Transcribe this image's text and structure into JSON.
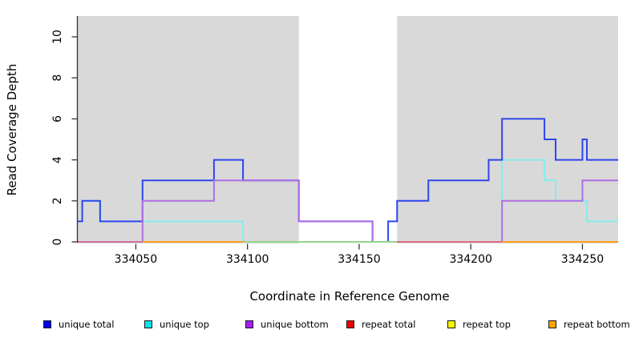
{
  "chart_data": {
    "type": "line",
    "step": true,
    "title": "",
    "xlabel": "Coordinate in Reference Genome",
    "ylabel": "Read Coverage Depth",
    "xlim": [
      334024,
      334266
    ],
    "ylim": [
      0,
      11
    ],
    "xticks": [
      334050,
      334100,
      334150,
      334200,
      334250
    ],
    "yticks": [
      0,
      2,
      4,
      6,
      8,
      10
    ],
    "grid": false,
    "plot_background": "#ffffff",
    "shaded_regions": [
      {
        "x0": 334024,
        "x1": 334123,
        "color": "#d9d9d9"
      },
      {
        "x0": 334167,
        "x1": 334266,
        "color": "#d9d9d9"
      }
    ],
    "series": [
      {
        "name": "unique total",
        "line_color": "#2e46ec",
        "width": 2,
        "z": 5,
        "points": [
          [
            334024,
            1
          ],
          [
            334026,
            2
          ],
          [
            334034,
            1
          ],
          [
            334053,
            3
          ],
          [
            334085,
            4
          ],
          [
            334098,
            3
          ],
          [
            334123,
            1
          ],
          [
            334156,
            0
          ],
          [
            334163,
            1
          ],
          [
            334167,
            2
          ],
          [
            334181,
            3
          ],
          [
            334208,
            4
          ],
          [
            334214,
            6
          ],
          [
            334233,
            5
          ],
          [
            334238,
            4
          ],
          [
            334250,
            5
          ],
          [
            334252,
            4
          ],
          [
            334266,
            4
          ]
        ]
      },
      {
        "name": "unique top",
        "line_color": "#87ebeb",
        "width": 2,
        "z": 4,
        "points": [
          [
            334024,
            1
          ],
          [
            334026,
            2
          ],
          [
            334034,
            1
          ],
          [
            334098,
            0
          ],
          [
            334214,
            4
          ],
          [
            334233,
            3
          ],
          [
            334238,
            2
          ],
          [
            334252,
            1
          ],
          [
            334266,
            1
          ]
        ]
      },
      {
        "name": "unique bottom",
        "line_color": "#b06ee6",
        "width": 2,
        "z": 6,
        "points": [
          [
            334024,
            0
          ],
          [
            334053,
            2
          ],
          [
            334085,
            3
          ],
          [
            334123,
            1
          ],
          [
            334156,
            0
          ],
          [
            334214,
            2
          ],
          [
            334250,
            3
          ],
          [
            334266,
            3
          ]
        ]
      },
      {
        "name": "repeat total",
        "line_color": "#e26a85",
        "width": 1.5,
        "z": 1,
        "points": [
          [
            334024,
            0
          ],
          [
            334266,
            0
          ]
        ]
      },
      {
        "name": "repeat top",
        "line_color": "#e8e84a",
        "width": 1.5,
        "z": 2,
        "points": [
          [
            334024,
            0
          ],
          [
            334266,
            0
          ]
        ]
      },
      {
        "name": "repeat bottom",
        "line_color": "#ff9e1b",
        "width": 1.5,
        "z": 3,
        "points": [
          [
            334024,
            0
          ],
          [
            334266,
            0
          ]
        ]
      }
    ],
    "baseline_segments": [
      {
        "x0": 334024,
        "x1": 334053,
        "color": "#cf6da6"
      },
      {
        "x0": 334053,
        "x1": 334098,
        "color": "#ff9e1b"
      },
      {
        "x0": 334098,
        "x1": 334167,
        "color": "#97d48f"
      },
      {
        "x0": 334167,
        "x1": 334214,
        "color": "#e26a85"
      },
      {
        "x0": 334214,
        "x1": 334266,
        "color": "#ff9e1b"
      }
    ],
    "legend": {
      "position": "bottom",
      "entries": [
        {
          "label": "unique total",
          "color": "#0000ee"
        },
        {
          "label": "unique top",
          "color": "#00e5ee"
        },
        {
          "label": "unique bottom",
          "color": "#a020f0"
        },
        {
          "label": "repeat total",
          "color": "#ee0000"
        },
        {
          "label": "repeat top",
          "color": "#f5f500"
        },
        {
          "label": "repeat bottom",
          "color": "#ffa500"
        }
      ]
    }
  },
  "axis": {
    "axis_color": "#333333",
    "tick_color": "#333333",
    "text_color": "#000000"
  }
}
